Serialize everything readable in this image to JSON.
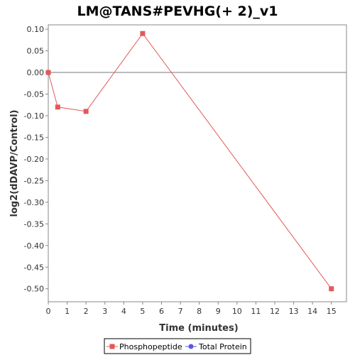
{
  "chart_data": {
    "type": "line",
    "title": "LM@TANS#PEVHG(+ 2)_v1",
    "xlabel": "Time (minutes)",
    "ylabel": "log2(dDAVP/Control)",
    "xlim": [
      0,
      15.8
    ],
    "ylim": [
      -0.53,
      0.11
    ],
    "xticks": [
      0,
      1,
      2,
      3,
      4,
      5,
      6,
      7,
      8,
      9,
      10,
      11,
      12,
      13,
      14,
      15
    ],
    "yticks": [
      0.1,
      0.05,
      0.0,
      -0.05,
      -0.1,
      -0.15,
      -0.2,
      -0.25,
      -0.3,
      -0.35,
      -0.4,
      -0.45,
      -0.5
    ],
    "ytick_labels": [
      "0.10",
      "0.05",
      "0.00",
      "-0.05",
      "-0.10",
      "-0.15",
      "-0.20",
      "-0.25",
      "-0.30",
      "-0.35",
      "-0.40",
      "-0.45",
      "-0.50"
    ],
    "zero_line": true,
    "grid": false,
    "legend_position": "bottom",
    "series": [
      {
        "name": "Phosphopeptide",
        "color": "#e05a5a",
        "marker": "square",
        "x": [
          0,
          0.5,
          2,
          5,
          15
        ],
        "y": [
          0.0,
          -0.08,
          -0.09,
          0.09,
          -0.5
        ]
      },
      {
        "name": "Total Protein",
        "color": "#5a5ae0",
        "marker": "circle",
        "x": [],
        "y": []
      }
    ]
  }
}
